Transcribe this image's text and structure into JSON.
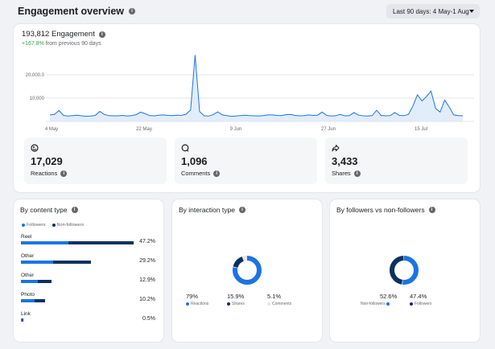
{
  "header": {
    "title": "Engagement overview",
    "date_range": "Last 90 days: 4 May-1 Aug"
  },
  "summary": {
    "total": "193,812 Engagement",
    "change_value": "+167.8%",
    "change_text": "from previous 90 days"
  },
  "colors": {
    "primary": "#1b74e4",
    "dark": "#0a3161",
    "positive": "#31a24c",
    "track": "#e4e6eb"
  },
  "chart_data": {
    "type": "area",
    "x_tick_labels": [
      "4 May",
      "22 May",
      "9 Jun",
      "27 Jun",
      "15 Jul"
    ],
    "y_tick_labels": [
      "20,000.0",
      "10,000"
    ],
    "ylim": [
      0,
      30000
    ],
    "series": [
      {
        "values": [
          2800,
          3000,
          4700,
          2600,
          2300,
          2500,
          2700,
          2400,
          2200,
          2300,
          2600,
          4300,
          3000,
          2500,
          2400,
          2400,
          2600,
          2300,
          2500,
          2900,
          4000,
          3300,
          2500,
          2400,
          2700,
          2800,
          2600,
          2500,
          2700,
          2600,
          3100,
          4900,
          28500,
          4200,
          2400,
          2300,
          2900,
          4100,
          2800,
          2500,
          2200,
          2300,
          2500,
          2700,
          2500,
          2400,
          2300,
          2500,
          2800,
          2800,
          2600,
          2500,
          2900,
          3000,
          2600,
          2400,
          2500,
          2800,
          2600,
          2700,
          4000,
          2600,
          2300,
          2500,
          3000,
          2400,
          2500,
          3800,
          2700,
          2400,
          2300,
          2500,
          4800,
          2600,
          2400,
          2500,
          3800,
          2600,
          2500,
          3000,
          6600,
          11400,
          8800,
          10700,
          13000,
          5600,
          4000,
          9100,
          6200,
          2800,
          2500,
          2400
        ]
      }
    ]
  },
  "stats": [
    {
      "icon": "reactions-icon",
      "value": "17,029",
      "label": "Reactions"
    },
    {
      "icon": "comments-icon",
      "value": "1,096",
      "label": "Comments"
    },
    {
      "icon": "shares-icon",
      "value": "3,433",
      "label": "Shares"
    }
  ],
  "content_type": {
    "title": "By content type",
    "legend": [
      "Followers",
      "Non-followers"
    ],
    "rows": [
      {
        "label": "Reel",
        "followers": 0.42,
        "non_followers": 0.58,
        "pct": "47.2%",
        "share": 0.472
      },
      {
        "label": "Other",
        "followers": 0.46,
        "non_followers": 0.54,
        "pct": "29.2%",
        "share": 0.292
      },
      {
        "label": "Other",
        "followers": 0.55,
        "non_followers": 0.45,
        "pct": "12.9%",
        "share": 0.129
      },
      {
        "label": "Photo",
        "followers": 0.55,
        "non_followers": 0.45,
        "pct": "10.2%",
        "share": 0.102
      },
      {
        "label": "Link",
        "followers": 0.5,
        "non_followers": 0.5,
        "pct": "0.5%",
        "share": 0.005
      }
    ]
  },
  "interaction_type": {
    "title": "By interaction type",
    "items": [
      {
        "value": "79%",
        "label": "Reactions",
        "share": 0.79,
        "color": "#1b74e4"
      },
      {
        "value": "15.9%",
        "label": "Shares",
        "share": 0.159,
        "color": "#0a3161"
      },
      {
        "value": "5.1%",
        "label": "Comments",
        "share": 0.051,
        "color": "#e4e6eb"
      }
    ]
  },
  "followers": {
    "title": "By followers vs non-followers",
    "items": [
      {
        "value": "52.6%",
        "label": "Non-followers",
        "share": 0.526,
        "color": "#1b74e4"
      },
      {
        "value": "47.4%",
        "label": "Followers",
        "share": 0.474,
        "color": "#0a3161"
      }
    ]
  }
}
